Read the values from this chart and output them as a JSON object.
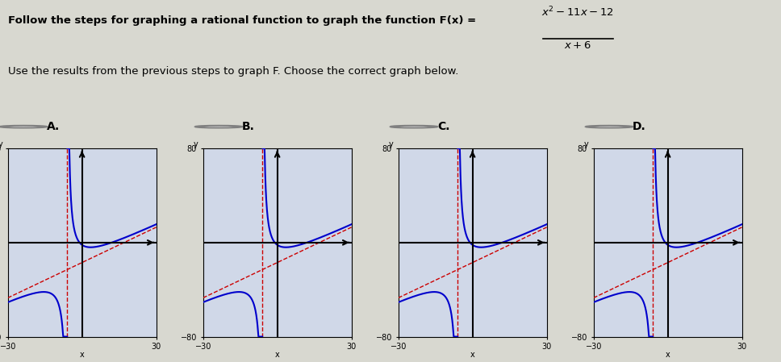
{
  "title_text": "Follow the steps for graphing a rational function to graph the function F(x) =",
  "formula": "x² −11x −12",
  "formula_denom": "x + 6",
  "subtitle": "Use the results from the previous steps to graph F. Choose the correct graph below.",
  "options": [
    "A.",
    "B.",
    "C.",
    "D."
  ],
  "xlim": [
    -30,
    30
  ],
  "ylim": [
    -80,
    80
  ],
  "xticks": [
    -30,
    30
  ],
  "yticks": [
    -80,
    80
  ],
  "bg_color": "#e8e8e8",
  "grid_color": "#bbbbbb",
  "asymptote_color": "#cc0000",
  "curve_color": "#0000cc",
  "asymptote_x": -6,
  "oblique_slope": 1,
  "oblique_intercept": -17
}
